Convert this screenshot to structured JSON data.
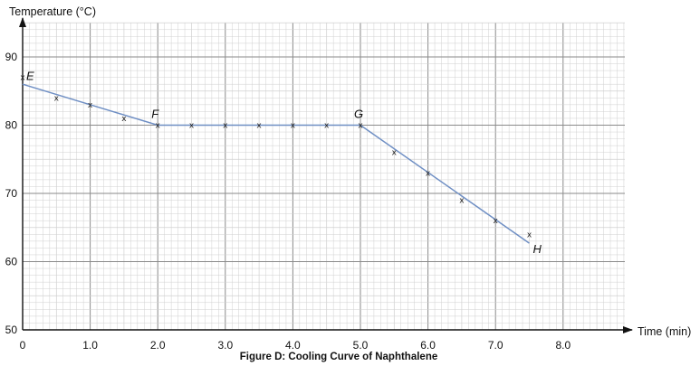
{
  "chart_data": {
    "type": "line",
    "caption": "Figure D: Cooling Curve of Naphthalene",
    "ylabel": "Temperature (°C)",
    "xlabel": "Time (min)",
    "xlim": [
      0,
      8.9
    ],
    "ylim": [
      50,
      95
    ],
    "x_ticks": [
      {
        "value": 0,
        "label": "0"
      },
      {
        "value": 1,
        "label": "1.0"
      },
      {
        "value": 2,
        "label": "2.0"
      },
      {
        "value": 3,
        "label": "3.0"
      },
      {
        "value": 4,
        "label": "4.0"
      },
      {
        "value": 5,
        "label": "5.0"
      },
      {
        "value": 6,
        "label": "6.0"
      },
      {
        "value": 7,
        "label": "7.0"
      },
      {
        "value": 8,
        "label": "8.0"
      }
    ],
    "y_ticks": [
      {
        "value": 50,
        "label": "50"
      },
      {
        "value": 60,
        "label": "60"
      },
      {
        "value": 70,
        "label": "70"
      },
      {
        "value": 80,
        "label": "80"
      },
      {
        "value": 90,
        "label": "90"
      }
    ],
    "grid": true,
    "points": [
      {
        "x": 0.0,
        "y": 87
      },
      {
        "x": 0.5,
        "y": 84
      },
      {
        "x": 1.0,
        "y": 83
      },
      {
        "x": 1.5,
        "y": 81
      },
      {
        "x": 2.0,
        "y": 80
      },
      {
        "x": 2.5,
        "y": 80
      },
      {
        "x": 3.0,
        "y": 80
      },
      {
        "x": 3.5,
        "y": 80
      },
      {
        "x": 4.0,
        "y": 80
      },
      {
        "x": 4.5,
        "y": 80
      },
      {
        "x": 5.0,
        "y": 80
      },
      {
        "x": 5.5,
        "y": 76
      },
      {
        "x": 6.0,
        "y": 73
      },
      {
        "x": 6.5,
        "y": 69
      },
      {
        "x": 7.0,
        "y": 66
      },
      {
        "x": 7.5,
        "y": 64
      }
    ],
    "best_fit_line": [
      {
        "x": 0.0,
        "y": 86
      },
      {
        "x": 2.0,
        "y": 80
      },
      {
        "x": 5.0,
        "y": 80
      },
      {
        "x": 7.5,
        "y": 62.7
      }
    ],
    "marker_symbol": "x",
    "point_labels": [
      {
        "label": "E",
        "x": 0.0,
        "y": 87
      },
      {
        "label": "F",
        "x": 2.0,
        "y": 80
      },
      {
        "label": "G",
        "x": 5.0,
        "y": 80
      },
      {
        "label": "H",
        "x": 7.5,
        "y": 62.7
      }
    ],
    "colors": {
      "line": "#6f8fc4",
      "major_grid": "#8a8a8a",
      "minor_grid": "#d0d0d0",
      "axis": "#111111"
    }
  }
}
